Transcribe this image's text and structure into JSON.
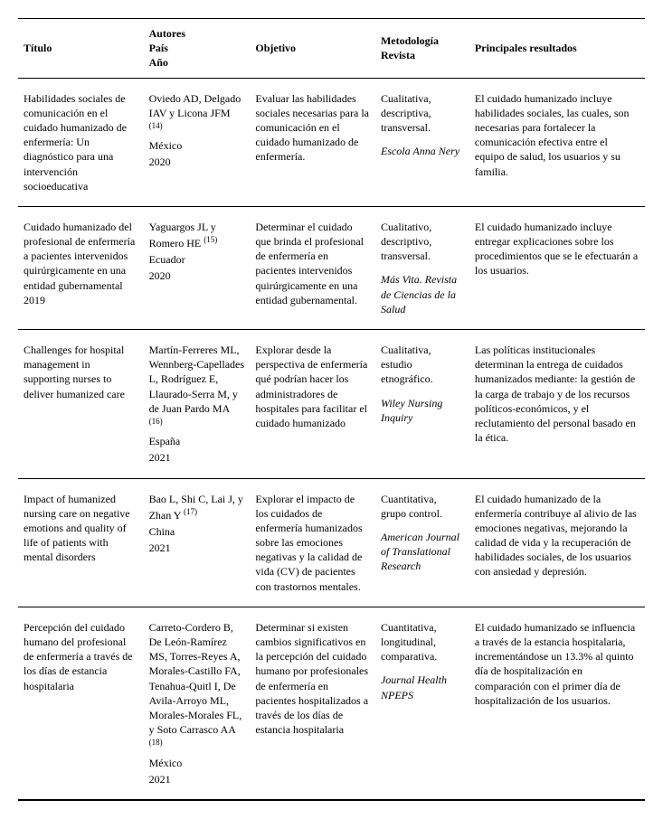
{
  "headers": {
    "title": "Título",
    "authors_l1": "Autores",
    "authors_l2": "País",
    "authors_l3": "Año",
    "objective": "Objetivo",
    "method_l1": "Metodología",
    "method_l2": "Revista",
    "results": "Principales resultados"
  },
  "rows": [
    {
      "title": "Habilidades sociales de comunicación en el cuidado humanizado de enfermería: Un diagnóstico para una intervención socioeducativa",
      "authors": "Oviedo AD, Delgado IAV y Licona JFM",
      "ref": "(14)",
      "country": "México",
      "year": "2020",
      "objective": "Evaluar las habilidades sociales necesarias para la comunicación en el cuidado humanizado de enfermería.",
      "meth_type": "Cualitativa, descriptiva, transversal.",
      "journal": "Escola Anna Nery",
      "results": "El cuidado humanizado incluye habilidades sociales, las cuales, son necesarias para fortalecer la comunicación efectiva entre el equipo de salud, los usuarios y su familia."
    },
    {
      "title": "Cuidado humanizado del profesional de enfermería a pacientes intervenidos quirúrgicamente en una entidad gubernamental 2019",
      "authors": "Yaguargos JL y Romero HE",
      "ref": "(15)",
      "country": "Ecuador",
      "year": "2020",
      "objective": "Determinar el cuidado que brinda el profesional de enfermería en pacientes intervenidos quirúrgicamente en una entidad gubernamental.",
      "meth_type": "Cualitativo, descriptivo, transversal.",
      "journal": "Más Vita. Revista de Ciencias de la Salud",
      "results": "El cuidado humanizado incluye entregar explicaciones sobre los procedimientos que se le efectuarán a los usuarios."
    },
    {
      "title": "Challenges for hospital management in supporting nurses to deliver humanized care",
      "authors": "Martín-Ferreres ML, Wennberg-Capellades L, Rodríguez E, Llaurado-Serra M, y de Juan Pardo MA",
      "ref": "(16)",
      "country": "España",
      "year": "2021",
      "objective": "Explorar desde la perspectiva de enfermería qué podrían hacer los administradores de hospitales para facilitar el cuidado humanizado",
      "meth_type": "Cualitativa, estudio etnográfico.",
      "journal": "Wiley Nursing Inquiry",
      "results": "Las políticas institucionales determinan la entrega de cuidados humanizados mediante: la gestión de la carga de trabajo y de los recursos políticos-económicos, y el reclutamiento del personal basado en la ética."
    },
    {
      "title": "Impact of humanized nursing care on negative emotions and quality of life of patients with mental disorders",
      "authors": "Bao L, Shi C, Lai J, y Zhan Y",
      "ref": "(17)",
      "country": "China",
      "year": "2021",
      "objective": "Explorar el impacto de los cuidados de enfermería humanizados sobre las emociones negativas y la calidad de vida (CV) de pacientes con trastornos mentales.",
      "meth_type": "Cuantitativa, grupo control.",
      "journal": "American Journal of Translational Research",
      "results": "El cuidado humanizado de la enfermería contribuye al alivio de las emociones negativas, mejorando la calidad de vida y la recuperación de habilidades sociales, de los usuarios con ansiedad y depresión."
    },
    {
      "title": "Percepción del cuidado humano del profesional de enfermería a través de los días de estancia hospitalaria",
      "authors": "Carreto-Cordero B, De León-Ramírez MS, Torres-Reyes A, Morales-Castillo FA, Tenahua-Quitl I, De Avila-Arroyo ML, Morales-Morales FL, y Soto Carrasco AA",
      "ref": "(18)",
      "country": "México",
      "year": "2021",
      "objective": "Determinar si existen cambios significativos en la percepción del cuidado humano por profesionales de enfermería en pacientes hospitalizados a través de los días de estancia hospitalaria",
      "meth_type": "Cuantitativa, longitudinal, comparativa.",
      "journal": "Journal Health NPEPS",
      "results": "El cuidado humanizado se influencia a través de la estancia hospitalaria, incrementándose un 13.3% al quinto día de hospitalización en comparación con el primer día de hospitalización de los usuarios."
    }
  ]
}
